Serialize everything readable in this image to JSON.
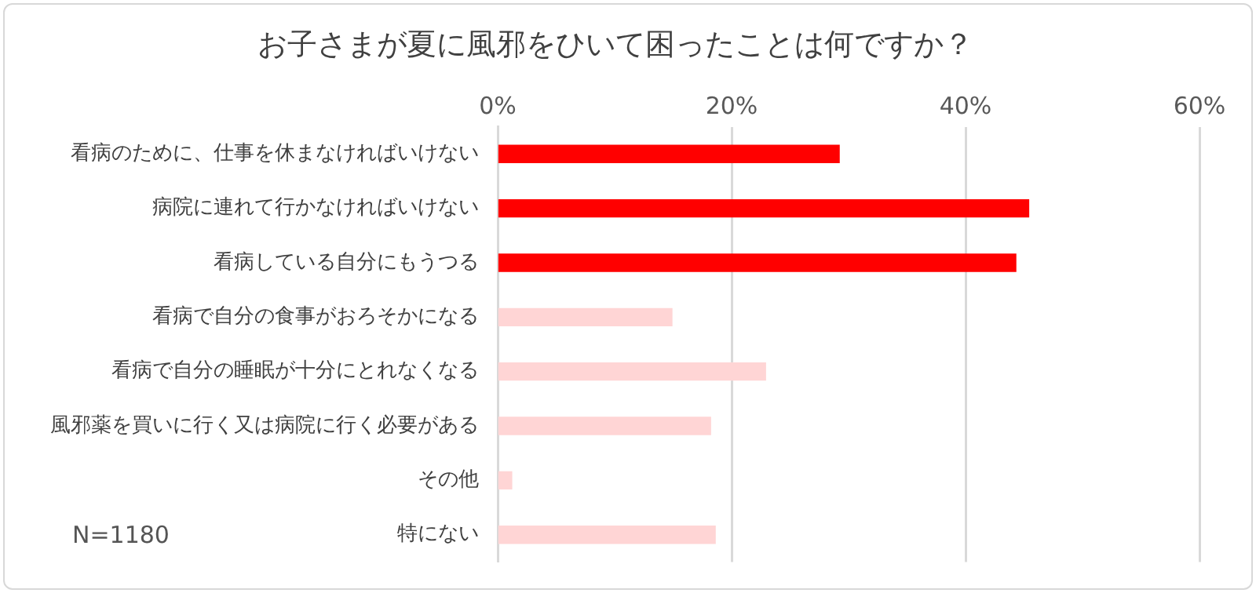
{
  "chart_data": {
    "type": "bar",
    "orientation": "horizontal",
    "title": "お子さまが夏に風邪をひいて困ったことは何ですか？",
    "categories": [
      "看病のために、仕事を休まなければいけない",
      "病院に連れて行かなければいけない",
      "看病している自分にもうつる",
      "看病で自分の食事がおろそかになる",
      "看病で自分の睡眠が十分にとれなくなる",
      "風邪薬を買いに行く又は病院に行く必要がある",
      "その他",
      "特にない"
    ],
    "values": [
      29.2,
      45.4,
      44.3,
      14.9,
      22.9,
      18.2,
      1.2,
      18.6
    ],
    "colors": [
      "#ff0000",
      "#ff0000",
      "#ff0000",
      "#ffd5d5",
      "#ffd5d5",
      "#ffd5d5",
      "#ffd5d5",
      "#ffd5d5"
    ],
    "xlim": [
      0,
      60
    ],
    "xticks": [
      {
        "value": 0,
        "label": "0%"
      },
      {
        "value": 20,
        "label": "20%"
      },
      {
        "value": 40,
        "label": "40%"
      },
      {
        "value": 60,
        "label": "60%"
      }
    ],
    "grid": "x",
    "legend": false,
    "annotations": [
      "N=1180"
    ]
  }
}
